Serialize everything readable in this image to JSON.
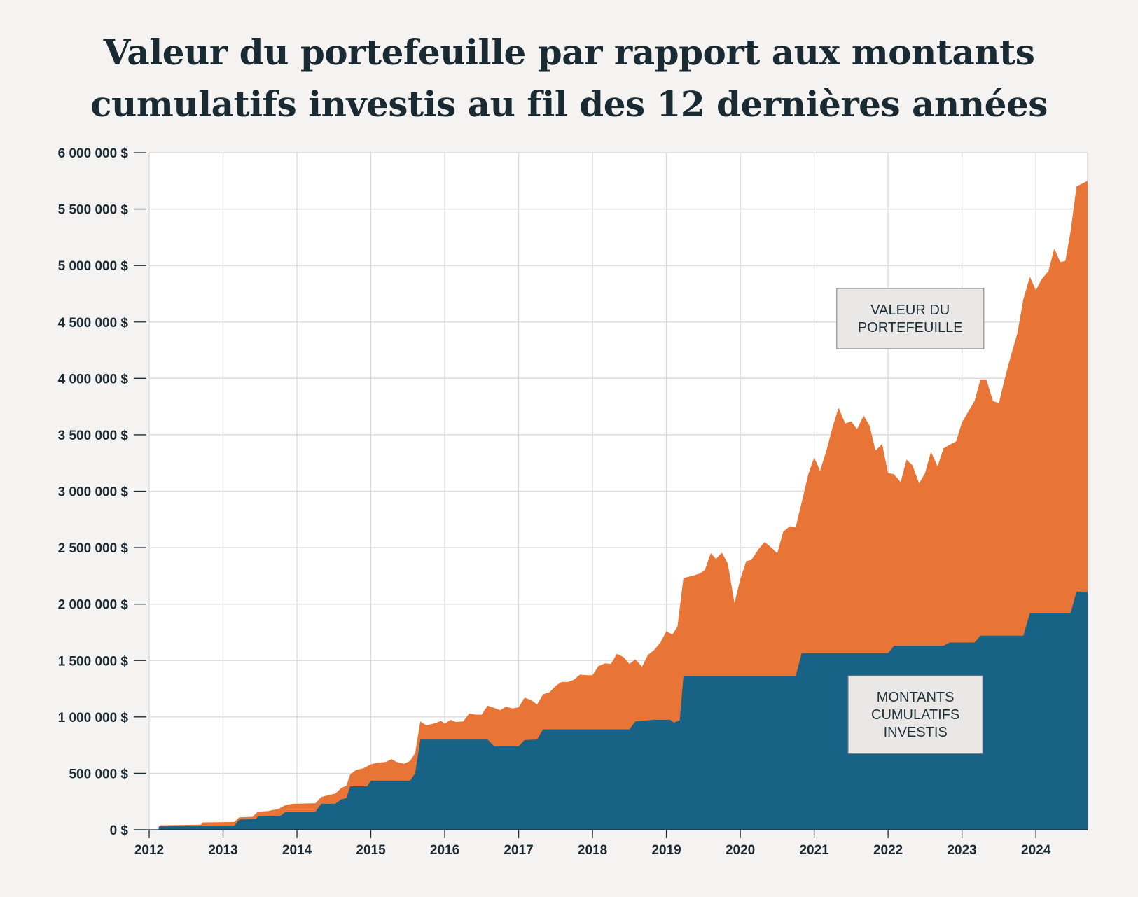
{
  "title": {
    "line1": "Valeur du portefeuille par rapport aux montants",
    "line2": "cumulatifs investis au fil des 12 dernières années"
  },
  "colors": {
    "portfolio": "#e87435",
    "invested": "#186285",
    "grid": "#d9d9d9",
    "background": "#f4f3f1",
    "plot_background": "#ffffff"
  },
  "chart_data": {
    "type": "area",
    "title": "Valeur du portefeuille par rapport aux montants cumulatifs investis au fil des 12 dernières années",
    "xlim": [
      2012,
      2024.7
    ],
    "ylim": [
      0,
      6000000
    ],
    "x_ticks": [
      2012,
      2013,
      2014,
      2015,
      2016,
      2017,
      2018,
      2019,
      2020,
      2021,
      2022,
      2023,
      2024
    ],
    "x_tick_labels": [
      "2012",
      "2013",
      "2014",
      "2015",
      "2016",
      "2017",
      "2018",
      "2019",
      "2020",
      "2021",
      "2022",
      "2023",
      "2024"
    ],
    "y_ticks": [
      0,
      500000,
      1000000,
      1500000,
      2000000,
      2500000,
      3000000,
      3500000,
      4000000,
      4500000,
      5000000,
      5500000,
      6000000
    ],
    "y_tick_labels": [
      "0 $",
      "500 000 $",
      "1 000 000 $",
      "1 500 000 $",
      "2 000 000 $",
      "2 500 000 $",
      "3 000 000 $",
      "3 500 000 $",
      "4 000 000 $",
      "4 500 000 $",
      "5 000 000 $",
      "5 500 000 $",
      "6 000 000 $"
    ],
    "grid": true,
    "series": [
      {
        "name": "VALEUR DU PORTEFEUILLE",
        "label_lines": [
          "VALEUR DU",
          "PORTEFEUILLE"
        ],
        "label_anchor": [
          2022.3,
          4530000
        ],
        "points": [
          [
            2012.13,
            20000
          ],
          [
            2012.15,
            40000
          ],
          [
            2012.7,
            45000
          ],
          [
            2012.72,
            65000
          ],
          [
            2013.15,
            68000
          ],
          [
            2013.22,
            110000
          ],
          [
            2013.4,
            115000
          ],
          [
            2013.47,
            160000
          ],
          [
            2013.6,
            165000
          ],
          [
            2013.75,
            185000
          ],
          [
            2013.85,
            220000
          ],
          [
            2013.95,
            230000
          ],
          [
            2014.25,
            235000
          ],
          [
            2014.33,
            290000
          ],
          [
            2014.45,
            310000
          ],
          [
            2014.52,
            320000
          ],
          [
            2014.6,
            370000
          ],
          [
            2014.67,
            390000
          ],
          [
            2014.72,
            490000
          ],
          [
            2014.8,
            530000
          ],
          [
            2014.9,
            545000
          ],
          [
            2015.0,
            580000
          ],
          [
            2015.1,
            595000
          ],
          [
            2015.2,
            600000
          ],
          [
            2015.28,
            625000
          ],
          [
            2015.35,
            600000
          ],
          [
            2015.45,
            585000
          ],
          [
            2015.53,
            610000
          ],
          [
            2015.6,
            680000
          ],
          [
            2015.67,
            960000
          ],
          [
            2015.75,
            925000
          ],
          [
            2015.85,
            940000
          ],
          [
            2015.95,
            965000
          ],
          [
            2016.0,
            940000
          ],
          [
            2016.08,
            975000
          ],
          [
            2016.15,
            955000
          ],
          [
            2016.25,
            960000
          ],
          [
            2016.33,
            1030000
          ],
          [
            2016.42,
            1020000
          ],
          [
            2016.5,
            1020000
          ],
          [
            2016.58,
            1100000
          ],
          [
            2016.67,
            1080000
          ],
          [
            2016.75,
            1060000
          ],
          [
            2016.83,
            1090000
          ],
          [
            2016.92,
            1075000
          ],
          [
            2017.0,
            1085000
          ],
          [
            2017.08,
            1170000
          ],
          [
            2017.17,
            1150000
          ],
          [
            2017.25,
            1110000
          ],
          [
            2017.33,
            1200000
          ],
          [
            2017.42,
            1220000
          ],
          [
            2017.5,
            1275000
          ],
          [
            2017.58,
            1310000
          ],
          [
            2017.67,
            1310000
          ],
          [
            2017.75,
            1330000
          ],
          [
            2017.83,
            1375000
          ],
          [
            2017.92,
            1370000
          ],
          [
            2018.0,
            1370000
          ],
          [
            2018.08,
            1450000
          ],
          [
            2018.17,
            1475000
          ],
          [
            2018.25,
            1470000
          ],
          [
            2018.33,
            1560000
          ],
          [
            2018.42,
            1530000
          ],
          [
            2018.5,
            1470000
          ],
          [
            2018.58,
            1510000
          ],
          [
            2018.67,
            1445000
          ],
          [
            2018.75,
            1550000
          ],
          [
            2018.83,
            1590000
          ],
          [
            2018.92,
            1660000
          ],
          [
            2019.0,
            1760000
          ],
          [
            2019.08,
            1730000
          ],
          [
            2019.15,
            1800000
          ],
          [
            2019.23,
            2230000
          ],
          [
            2019.35,
            2250000
          ],
          [
            2019.45,
            2270000
          ],
          [
            2019.52,
            2300000
          ],
          [
            2019.6,
            2450000
          ],
          [
            2019.67,
            2400000
          ],
          [
            2019.75,
            2455000
          ],
          [
            2019.83,
            2360000
          ],
          [
            2019.92,
            2010000
          ],
          [
            2020.0,
            2220000
          ],
          [
            2020.08,
            2380000
          ],
          [
            2020.15,
            2390000
          ],
          [
            2020.25,
            2490000
          ],
          [
            2020.33,
            2550000
          ],
          [
            2020.42,
            2500000
          ],
          [
            2020.5,
            2450000
          ],
          [
            2020.58,
            2640000
          ],
          [
            2020.67,
            2690000
          ],
          [
            2020.75,
            2680000
          ],
          [
            2020.83,
            2900000
          ],
          [
            2020.92,
            3150000
          ],
          [
            2021.0,
            3300000
          ],
          [
            2021.08,
            3180000
          ],
          [
            2021.17,
            3370000
          ],
          [
            2021.25,
            3570000
          ],
          [
            2021.33,
            3740000
          ],
          [
            2021.42,
            3600000
          ],
          [
            2021.5,
            3620000
          ],
          [
            2021.58,
            3550000
          ],
          [
            2021.67,
            3670000
          ],
          [
            2021.75,
            3580000
          ],
          [
            2021.83,
            3360000
          ],
          [
            2021.92,
            3420000
          ],
          [
            2022.0,
            3160000
          ],
          [
            2022.08,
            3150000
          ],
          [
            2022.17,
            3080000
          ],
          [
            2022.25,
            3280000
          ],
          [
            2022.33,
            3230000
          ],
          [
            2022.42,
            3070000
          ],
          [
            2022.5,
            3160000
          ],
          [
            2022.58,
            3350000
          ],
          [
            2022.67,
            3220000
          ],
          [
            2022.75,
            3380000
          ],
          [
            2022.83,
            3410000
          ],
          [
            2022.92,
            3440000
          ],
          [
            2023.0,
            3610000
          ],
          [
            2023.08,
            3700000
          ],
          [
            2023.17,
            3800000
          ],
          [
            2023.25,
            3990000
          ],
          [
            2023.33,
            3990000
          ],
          [
            2023.42,
            3800000
          ],
          [
            2023.5,
            3780000
          ],
          [
            2023.58,
            4000000
          ],
          [
            2023.67,
            4220000
          ],
          [
            2023.75,
            4400000
          ],
          [
            2023.83,
            4700000
          ],
          [
            2023.92,
            4900000
          ],
          [
            2024.0,
            4780000
          ],
          [
            2024.08,
            4880000
          ],
          [
            2024.17,
            4950000
          ],
          [
            2024.25,
            5150000
          ],
          [
            2024.33,
            5030000
          ],
          [
            2024.4,
            5040000
          ],
          [
            2024.47,
            5300000
          ],
          [
            2024.55,
            5700000
          ],
          [
            2024.7,
            5750000
          ]
        ]
      },
      {
        "name": "MONTANTS CUMULATIFS INVESTIS",
        "label_lines": [
          "MONTANTS",
          "CUMULATIFS",
          "INVESTIS"
        ],
        "label_anchor": [
          2022.37,
          1020000
        ],
        "points": [
          [
            2012.13,
            30000
          ],
          [
            2013.15,
            35000
          ],
          [
            2013.22,
            90000
          ],
          [
            2013.45,
            95000
          ],
          [
            2013.47,
            120000
          ],
          [
            2013.78,
            125000
          ],
          [
            2013.85,
            160000
          ],
          [
            2014.25,
            160000
          ],
          [
            2014.33,
            230000
          ],
          [
            2014.52,
            230000
          ],
          [
            2014.6,
            270000
          ],
          [
            2014.67,
            280000
          ],
          [
            2014.72,
            385000
          ],
          [
            2014.95,
            385000
          ],
          [
            2015.0,
            435000
          ],
          [
            2015.53,
            435000
          ],
          [
            2015.6,
            500000
          ],
          [
            2015.67,
            800000
          ],
          [
            2016.58,
            800000
          ],
          [
            2016.67,
            740000
          ],
          [
            2017.0,
            740000
          ],
          [
            2017.08,
            795000
          ],
          [
            2017.25,
            800000
          ],
          [
            2017.33,
            890000
          ],
          [
            2018.5,
            890000
          ],
          [
            2018.58,
            960000
          ],
          [
            2018.75,
            970000
          ],
          [
            2018.83,
            975000
          ],
          [
            2019.05,
            975000
          ],
          [
            2019.1,
            950000
          ],
          [
            2019.18,
            970000
          ],
          [
            2019.23,
            1360000
          ],
          [
            2020.75,
            1360000
          ],
          [
            2020.83,
            1565000
          ],
          [
            2022.0,
            1565000
          ],
          [
            2022.08,
            1630000
          ],
          [
            2022.75,
            1630000
          ],
          [
            2022.83,
            1660000
          ],
          [
            2023.17,
            1660000
          ],
          [
            2023.25,
            1720000
          ],
          [
            2023.83,
            1720000
          ],
          [
            2023.92,
            1920000
          ],
          [
            2024.47,
            1920000
          ],
          [
            2024.55,
            2110000
          ],
          [
            2024.7,
            2110000
          ]
        ]
      }
    ]
  }
}
